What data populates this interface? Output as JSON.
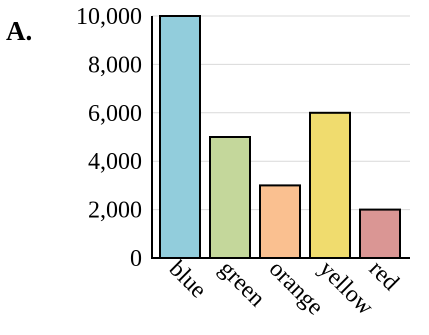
{
  "panel_label": "A.",
  "colors": {
    "bar_stroke": "#000000",
    "grid": "#d9d9d9",
    "axis": "#000000"
  },
  "chart_data": {
    "type": "bar",
    "title": "",
    "xlabel": "",
    "ylabel": "",
    "categories": [
      "blue",
      "green",
      "orange",
      "yellow",
      "red"
    ],
    "values": [
      10000,
      5000,
      3000,
      6000,
      2000
    ],
    "bar_colors": [
      "#92cddc",
      "#c4d79b",
      "#fac090",
      "#f0dc6e",
      "#da9694"
    ],
    "ylim": [
      0,
      10000
    ],
    "yticks": [
      0,
      2000,
      4000,
      6000,
      8000,
      10000
    ],
    "ytick_labels": [
      "0",
      "2,000",
      "4,000",
      "6,000",
      "8,000",
      "10,000"
    ],
    "grid": true,
    "legend": "none"
  }
}
